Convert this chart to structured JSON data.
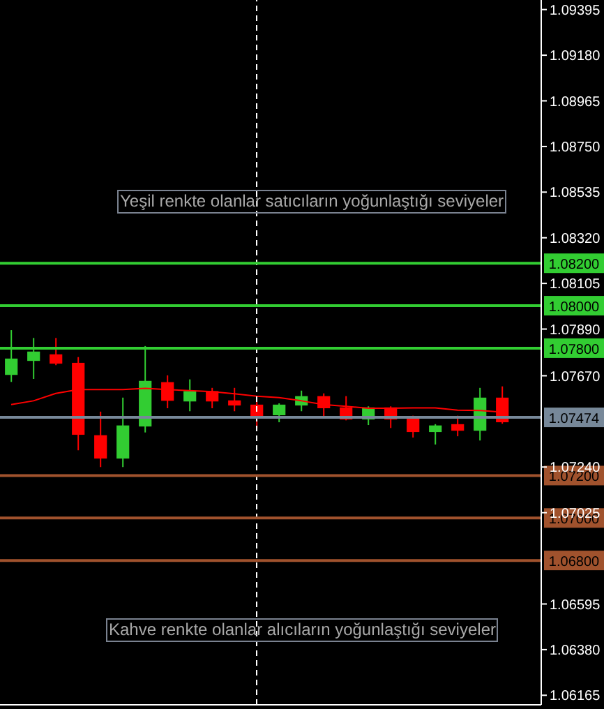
{
  "chart_data": {
    "type": "candlestick",
    "categories": [
      null,
      null,
      null,
      null,
      null,
      null,
      null,
      null,
      null,
      null,
      null,
      null,
      null,
      null,
      null,
      null,
      null,
      null,
      null,
      null,
      null,
      null,
      null
    ],
    "ohlc": [
      [
        1.07674,
        1.07885,
        1.07641,
        1.07751
      ],
      [
        1.0774,
        1.07848,
        1.07655,
        1.07784
      ],
      [
        1.07771,
        1.07848,
        1.0772,
        1.07727
      ],
      [
        1.07731,
        1.07758,
        1.07319,
        1.07392
      ],
      [
        1.0739,
        1.07501,
        1.0724,
        1.0728
      ],
      [
        1.0728,
        1.07567,
        1.0724,
        1.07436
      ],
      [
        1.07431,
        1.0781,
        1.07403,
        1.07646
      ],
      [
        1.0764,
        1.07672,
        1.07517,
        1.07552
      ],
      [
        1.07549,
        1.07653,
        1.07503,
        1.07598
      ],
      [
        1.07598,
        1.07613,
        1.07517,
        1.07549
      ],
      [
        1.07554,
        1.07613,
        1.07503,
        1.0753
      ],
      [
        1.07534,
        1.07547,
        1.07424,
        1.07477
      ],
      [
        1.07484,
        1.0754,
        1.07451,
        1.07534
      ],
      [
        1.0753,
        1.076,
        1.07503,
        1.07574
      ],
      [
        1.07574,
        1.07587,
        1.07477,
        1.07517
      ],
      [
        1.07521,
        1.07574,
        1.0746,
        1.07464
      ],
      [
        1.07464,
        1.07526,
        1.07438,
        1.07521
      ],
      [
        1.07521,
        1.07526,
        1.07424,
        1.07464
      ],
      [
        1.07468,
        1.07482,
        1.07379,
        1.07405
      ],
      [
        1.07405,
        1.07442,
        1.07346,
        1.07436
      ],
      [
        1.07442,
        1.07482,
        1.07385,
        1.07411
      ],
      [
        1.07411,
        1.07613,
        1.07365,
        1.07567
      ],
      [
        1.07567,
        1.0762,
        1.07444,
        1.07451
      ]
    ],
    "colors": [
      "#32cd32",
      "#32cd32",
      "#ff0000",
      "#ff0000",
      "#ff0000",
      "#32cd32",
      "#32cd32",
      "#ff0000",
      "#32cd32",
      "#ff0000",
      "#ff0000",
      "#ff0000",
      "#32cd32",
      "#32cd32",
      "#ff0000",
      "#ff0000",
      "#32cd32",
      "#ff0000",
      "#ff0000",
      "#32cd32",
      "#ff0000",
      "#32cd32",
      "#ff0000"
    ],
    "series": [
      {
        "type": "line",
        "color": "#ff0000",
        "values": [
          1.07534,
          1.07552,
          1.07587,
          1.07605,
          1.07605,
          1.07605,
          1.07611,
          1.07605,
          1.076,
          1.07595,
          1.07585,
          1.07574,
          1.07567,
          1.07552,
          1.07534,
          1.07526,
          1.07517,
          1.07517,
          1.07519,
          1.07519,
          1.07508,
          1.07506,
          1.07499
        ]
      }
    ],
    "marker": "none",
    "ylim": [
      1.0612,
      1.0944
    ],
    "yticks": [
      1.09395,
      {
        "value": 1.0918,
        "label": "1.09180"
      },
      1.08965,
      {
        "value": 1.0875,
        "label": "1.08750"
      },
      1.08535,
      {
        "value": 1.0832,
        "label": "1.08320"
      },
      1.08105,
      {
        "value": 1.0789,
        "label": "1.07890"
      },
      {
        "value": 1.0767,
        "label": "1.07670"
      },
      {
        "value": 1.0724,
        "label": "1.07240"
      },
      1.07025,
      1.06595,
      {
        "value": 1.0638,
        "label": "1.06380"
      },
      1.06165
    ],
    "tick_labels": "y",
    "ref_lines": [
      {
        "axis": "y",
        "value": 1.082,
        "label": "1.08200",
        "color": "#32cd32"
      },
      {
        "axis": "y",
        "value": 1.08,
        "label": "1.08000",
        "color": "#32cd32"
      },
      {
        "axis": "y",
        "value": 1.078,
        "label": "1.07800",
        "color": "#32cd32"
      },
      {
        "axis": "y",
        "value": 1.07474,
        "label": "1.07474",
        "color": "#778899"
      },
      {
        "axis": "y",
        "value": 1.072,
        "label": "1.07200",
        "color": "#a0522d"
      },
      {
        "axis": "y",
        "value": 1.07,
        "label": "1.07000",
        "color": "#a0522d"
      },
      {
        "axis": "y",
        "value": 1.068,
        "label": "1.06800",
        "color": "#a0522d"
      }
    ],
    "annotations": [
      "Yeşil renkte olanlar satıcıların yoğunlaştığı seviyeler",
      "Kahve renkte olanlar alıcıların yoğunlaştığı seviyeler"
    ]
  }
}
